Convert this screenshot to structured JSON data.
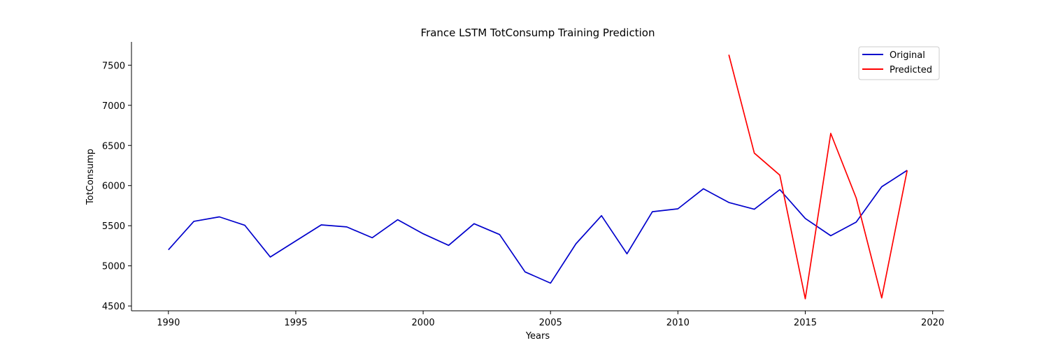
{
  "chart_data": {
    "type": "line",
    "title": "France LSTM TotConsump Training Prediction",
    "xlabel": "Years",
    "ylabel": "TotConsump",
    "xlim": [
      1988.55,
      2020.45
    ],
    "ylim": [
      4440,
      7790
    ],
    "x_ticks": [
      1990,
      1995,
      2000,
      2005,
      2010,
      2015,
      2020
    ],
    "y_ticks": [
      4500,
      5000,
      5500,
      6000,
      6500,
      7000,
      7500
    ],
    "grid": false,
    "legend_position": "top-right",
    "series": [
      {
        "name": "Original",
        "color": "#0000cc",
        "x": [
          1990,
          1991,
          1992,
          1993,
          1994,
          1995,
          1996,
          1997,
          1998,
          1999,
          2000,
          2001,
          2002,
          2003,
          2004,
          2005,
          2006,
          2007,
          2008,
          2009,
          2010,
          2011,
          2012,
          2013,
          2014,
          2015,
          2016,
          2017,
          2018,
          2019
        ],
        "values": [
          5200,
          5555,
          5610,
          5505,
          5110,
          5310,
          5510,
          5485,
          5350,
          5575,
          5400,
          5255,
          5525,
          5390,
          4925,
          4785,
          5275,
          5625,
          5150,
          5675,
          5710,
          5960,
          5790,
          5705,
          5950,
          5590,
          5375,
          5545,
          5985,
          6190
        ]
      },
      {
        "name": "Predicted",
        "color": "#ff0000",
        "x": [
          2012,
          2013,
          2014,
          2015,
          2016,
          2017,
          2018,
          2019
        ],
        "values": [
          7630,
          6405,
          6130,
          4590,
          6650,
          5845,
          4600,
          6190
        ]
      }
    ]
  }
}
